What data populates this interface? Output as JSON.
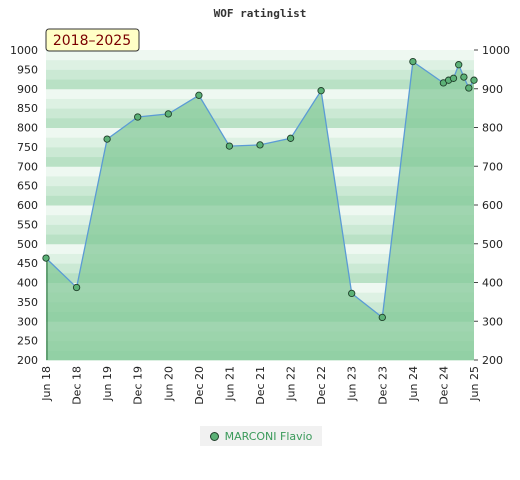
{
  "chart_data": {
    "type": "area",
    "title": "WOF ratinglist",
    "badge": "2018–2025",
    "ylim": [
      200,
      1000
    ],
    "yticks": [
      200,
      250,
      300,
      350,
      400,
      450,
      500,
      550,
      600,
      650,
      700,
      750,
      800,
      850,
      900,
      950,
      1000
    ],
    "yticks_right": [
      200,
      300,
      400,
      500,
      600,
      700,
      800,
      900,
      1000
    ],
    "xtick_labels": [
      "Jun 18",
      "Dec 18",
      "Jun 19",
      "Dec 19",
      "Jun 20",
      "Dec 20",
      "Jun 21",
      "Dec 21",
      "Jun 22",
      "Dec 22",
      "Jun 23",
      "Dec 23",
      "Jun 24",
      "Dec 24",
      "Jun 25"
    ],
    "series": [
      {
        "name": "MARCONI Flavio",
        "color": "#5b9bd5",
        "fill": "#86c99a",
        "points": [
          {
            "x": 0,
            "y": 463
          },
          {
            "x": 1,
            "y": 387
          },
          {
            "x": 2,
            "y": 770
          },
          {
            "x": 3,
            "y": 827
          },
          {
            "x": 4,
            "y": 835
          },
          {
            "x": 5,
            "y": 883
          },
          {
            "x": 6,
            "y": 752
          },
          {
            "x": 7,
            "y": 755
          },
          {
            "x": 8,
            "y": 772
          },
          {
            "x": 9,
            "y": 895
          },
          {
            "x": 10,
            "y": 372
          },
          {
            "x": 11,
            "y": 310
          },
          {
            "x": 12,
            "y": 970
          },
          {
            "x": 13,
            "y": 915
          },
          {
            "x": 13.17,
            "y": 922
          },
          {
            "x": 13.33,
            "y": 927
          },
          {
            "x": 13.5,
            "y": 962
          },
          {
            "x": 13.67,
            "y": 930
          },
          {
            "x": 13.83,
            "y": 902
          },
          {
            "x": 14,
            "y": 922
          }
        ]
      }
    ],
    "legend_position": "bottom-center"
  }
}
